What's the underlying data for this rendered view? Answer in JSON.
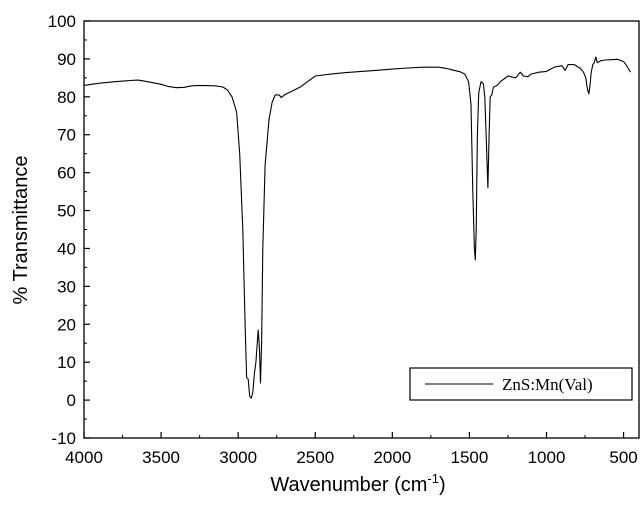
{
  "chart_data": {
    "type": "line",
    "title": "",
    "xlabel": "Wavenumber",
    "xlabel_unit_prefix": "cm",
    "xlabel_unit_exponent": "-1",
    "ylabel": "% Transmittance",
    "xlim": [
      4000,
      400
    ],
    "x_reversed": true,
    "ylim": [
      -10,
      100
    ],
    "x_ticks": [
      4000,
      3500,
      3000,
      2500,
      2000,
      1500,
      1000,
      500
    ],
    "y_ticks": [
      -10,
      0,
      10,
      20,
      30,
      40,
      50,
      60,
      70,
      80,
      90,
      100
    ],
    "grid": false,
    "legend_position": "bottom-right",
    "series": [
      {
        "name": "ZnS:Mn(Val)",
        "color": "#000000",
        "points": [
          [
            4000,
            83.0
          ],
          [
            3900,
            83.6
          ],
          [
            3800,
            84.0
          ],
          [
            3700,
            84.3
          ],
          [
            3650,
            84.4
          ],
          [
            3600,
            84.1
          ],
          [
            3500,
            83.3
          ],
          [
            3450,
            82.7
          ],
          [
            3400,
            82.4
          ],
          [
            3350,
            82.5
          ],
          [
            3300,
            82.9
          ],
          [
            3250,
            83.0
          ],
          [
            3150,
            82.9
          ],
          [
            3100,
            82.6
          ],
          [
            3070,
            81.8
          ],
          [
            3040,
            80.0
          ],
          [
            3010,
            76.0
          ],
          [
            2990,
            65.0
          ],
          [
            2970,
            45.0
          ],
          [
            2955,
            20.0
          ],
          [
            2945,
            6.0
          ],
          [
            2935,
            5.5
          ],
          [
            2925,
            1.0
          ],
          [
            2915,
            0.5
          ],
          [
            2905,
            2.0
          ],
          [
            2895,
            7.0
          ],
          [
            2885,
            10.0
          ],
          [
            2870,
            18.5
          ],
          [
            2862,
            14.0
          ],
          [
            2855,
            4.5
          ],
          [
            2848,
            15.0
          ],
          [
            2840,
            40.0
          ],
          [
            2825,
            62.0
          ],
          [
            2800,
            74.0
          ],
          [
            2780,
            78.5
          ],
          [
            2760,
            80.5
          ],
          [
            2735,
            80.5
          ],
          [
            2720,
            79.8
          ],
          [
            2700,
            80.5
          ],
          [
            2650,
            81.5
          ],
          [
            2600,
            82.5
          ],
          [
            2550,
            84.0
          ],
          [
            2500,
            85.5
          ],
          [
            2400,
            86.0
          ],
          [
            2300,
            86.4
          ],
          [
            2200,
            86.7
          ],
          [
            2100,
            87.0
          ],
          [
            2000,
            87.3
          ],
          [
            1900,
            87.6
          ],
          [
            1800,
            87.8
          ],
          [
            1700,
            87.8
          ],
          [
            1650,
            87.5
          ],
          [
            1600,
            87.0
          ],
          [
            1560,
            86.6
          ],
          [
            1530,
            86.0
          ],
          [
            1505,
            84.0
          ],
          [
            1490,
            78.0
          ],
          [
            1478,
            55.0
          ],
          [
            1468,
            40.0
          ],
          [
            1462,
            37.0
          ],
          [
            1456,
            45.0
          ],
          [
            1448,
            70.0
          ],
          [
            1440,
            81.0
          ],
          [
            1425,
            84.0
          ],
          [
            1410,
            83.5
          ],
          [
            1400,
            80.0
          ],
          [
            1390,
            68.0
          ],
          [
            1380,
            56.0
          ],
          [
            1372,
            70.0
          ],
          [
            1365,
            80.0
          ],
          [
            1355,
            80.5
          ],
          [
            1345,
            82.5
          ],
          [
            1320,
            83.0
          ],
          [
            1300,
            84.0
          ],
          [
            1250,
            85.5
          ],
          [
            1200,
            85.0
          ],
          [
            1170,
            86.5
          ],
          [
            1150,
            85.5
          ],
          [
            1120,
            85.3
          ],
          [
            1100,
            86.0
          ],
          [
            1050,
            86.5
          ],
          [
            1000,
            86.7
          ],
          [
            950,
            87.8
          ],
          [
            900,
            88.2
          ],
          [
            880,
            87.0
          ],
          [
            860,
            88.5
          ],
          [
            820,
            88.5
          ],
          [
            800,
            88.0
          ],
          [
            780,
            87.5
          ],
          [
            760,
            86.5
          ],
          [
            745,
            85.0
          ],
          [
            735,
            82.0
          ],
          [
            725,
            80.8
          ],
          [
            718,
            83.0
          ],
          [
            710,
            86.5
          ],
          [
            700,
            88.5
          ],
          [
            690,
            89.0
          ],
          [
            680,
            90.5
          ],
          [
            670,
            89.0
          ],
          [
            650,
            89.5
          ],
          [
            620,
            89.7
          ],
          [
            580,
            89.8
          ],
          [
            540,
            89.9
          ],
          [
            520,
            89.6
          ],
          [
            500,
            89.3
          ],
          [
            485,
            88.5
          ],
          [
            470,
            87.5
          ],
          [
            460,
            86.8
          ],
          [
            455,
            86.5
          ]
        ]
      }
    ]
  }
}
